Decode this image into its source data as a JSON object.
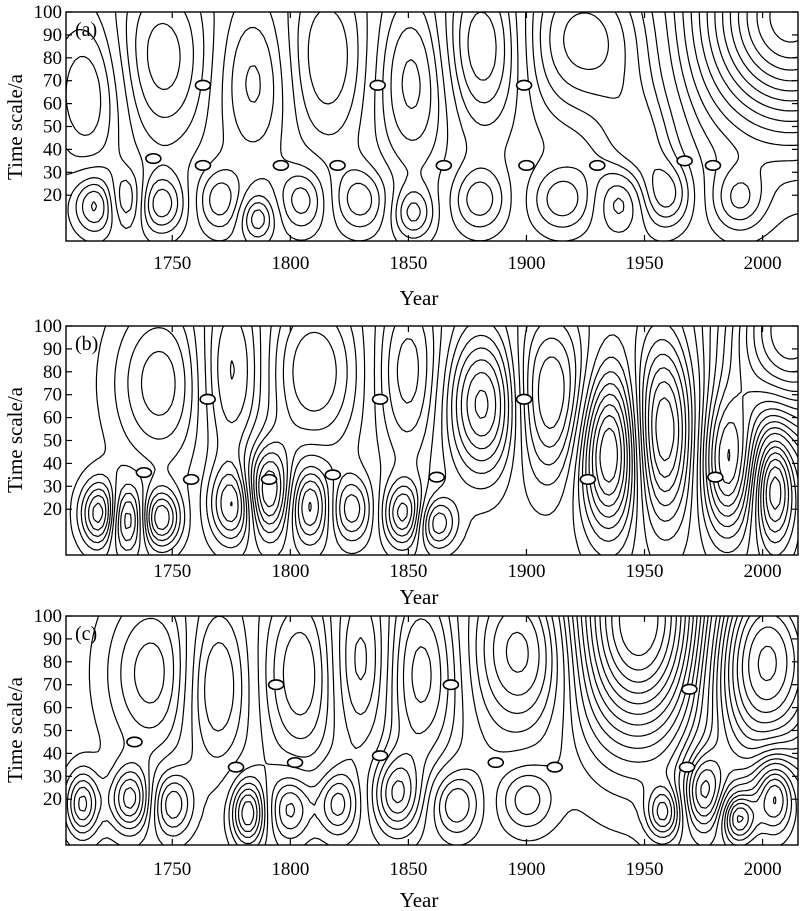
{
  "chart_data": [
    {
      "type": "contour",
      "panel_label": "(a)",
      "xlabel": "Year",
      "ylabel": "Time scale/a",
      "xlim": [
        1705,
        2015
      ],
      "ylim": [
        0,
        100
      ],
      "xticks": [
        1750,
        1800,
        1850,
        1900,
        1950,
        2000
      ],
      "yticks": [
        20,
        30,
        40,
        50,
        60,
        70,
        80,
        90,
        100
      ],
      "contour_style": "solid = positive, dashed = negative",
      "markers": [
        {
          "year": 1763,
          "scale": 68
        },
        {
          "year": 1742,
          "scale": 36
        },
        {
          "year": 1763,
          "scale": 33
        },
        {
          "year": 1796,
          "scale": 33
        },
        {
          "year": 1820,
          "scale": 33
        },
        {
          "year": 1837,
          "scale": 68
        },
        {
          "year": 1865,
          "scale": 33
        },
        {
          "year": 1899,
          "scale": 68
        },
        {
          "year": 1900,
          "scale": 33
        },
        {
          "year": 1930,
          "scale": 33
        },
        {
          "year": 1967,
          "scale": 35
        },
        {
          "year": 1979,
          "scale": 33
        }
      ],
      "centers": [
        {
          "year": 1718,
          "scale": 16,
          "sign": 1,
          "amp": 1.4,
          "sx": 7,
          "sy": 9
        },
        {
          "year": 1730,
          "scale": 18,
          "sign": -1,
          "amp": 1.1,
          "sx": 6,
          "sy": 9
        },
        {
          "year": 1745,
          "scale": 16,
          "sign": 1,
          "amp": 1.3,
          "sx": 7,
          "sy": 9
        },
        {
          "year": 1770,
          "scale": 18,
          "sign": -1,
          "amp": 1.0,
          "sx": 7,
          "sy": 10
        },
        {
          "year": 1786,
          "scale": 10,
          "sign": 1,
          "amp": 1.1,
          "sx": 5,
          "sy": 7
        },
        {
          "year": 1805,
          "scale": 18,
          "sign": -1,
          "amp": 1.0,
          "sx": 7,
          "sy": 10
        },
        {
          "year": 1830,
          "scale": 18,
          "sign": 1,
          "amp": 1.0,
          "sx": 8,
          "sy": 10
        },
        {
          "year": 1852,
          "scale": 12,
          "sign": -1,
          "amp": 1.1,
          "sx": 6,
          "sy": 8
        },
        {
          "year": 1880,
          "scale": 18,
          "sign": 1,
          "amp": 1.0,
          "sx": 8,
          "sy": 10
        },
        {
          "year": 1915,
          "scale": 18,
          "sign": -1,
          "amp": 1.0,
          "sx": 9,
          "sy": 10
        },
        {
          "year": 1940,
          "scale": 18,
          "sign": 1,
          "amp": 1.0,
          "sx": 7,
          "sy": 10
        },
        {
          "year": 1960,
          "scale": 20,
          "sign": -1,
          "amp": 1.0,
          "sx": 7,
          "sy": 10
        },
        {
          "year": 1990,
          "scale": 18,
          "sign": 1,
          "amp": 1.0,
          "sx": 8,
          "sy": 10
        },
        {
          "year": 1715,
          "scale": 65,
          "sign": -1,
          "amp": 1.2,
          "sx": 12,
          "sy": 25
        },
        {
          "year": 1745,
          "scale": 80,
          "sign": 1,
          "amp": 1.3,
          "sx": 16,
          "sy": 28
        },
        {
          "year": 1785,
          "scale": 70,
          "sign": -1,
          "amp": 1.0,
          "sx": 12,
          "sy": 25
        },
        {
          "year": 1815,
          "scale": 80,
          "sign": 1,
          "amp": 1.1,
          "sx": 14,
          "sy": 28
        },
        {
          "year": 1852,
          "scale": 70,
          "sign": -1,
          "amp": 1.3,
          "sx": 12,
          "sy": 28
        },
        {
          "year": 1882,
          "scale": 85,
          "sign": 1,
          "amp": 1.6,
          "sx": 13,
          "sy": 25
        },
        {
          "year": 1925,
          "scale": 88,
          "sign": -1,
          "amp": 1.6,
          "sx": 22,
          "sy": 25
        },
        {
          "year": 1948,
          "scale": 40,
          "sign": -1,
          "amp": 1.0,
          "sx": 12,
          "sy": 20
        },
        {
          "year": 2012,
          "scale": 98,
          "sign": 1,
          "amp": 4.0,
          "sx": 28,
          "sy": 35
        }
      ]
    },
    {
      "type": "contour",
      "panel_label": "(b)",
      "xlabel": "Year",
      "ylabel": "Time scale/a",
      "xlim": [
        1705,
        2015
      ],
      "ylim": [
        0,
        100
      ],
      "xticks": [
        1750,
        1800,
        1850,
        1900,
        1950,
        2000
      ],
      "yticks": [
        20,
        30,
        40,
        50,
        60,
        70,
        80,
        90,
        100
      ],
      "contour_style": "solid = positive, dashed = negative",
      "markers": [
        {
          "year": 1738,
          "scale": 36
        },
        {
          "year": 1758,
          "scale": 33
        },
        {
          "year": 1765,
          "scale": 68
        },
        {
          "year": 1791,
          "scale": 33
        },
        {
          "year": 1818,
          "scale": 35
        },
        {
          "year": 1838,
          "scale": 68
        },
        {
          "year": 1862,
          "scale": 34
        },
        {
          "year": 1899,
          "scale": 68
        },
        {
          "year": 1926,
          "scale": 33
        },
        {
          "year": 1980,
          "scale": 34
        }
      ],
      "centers": [
        {
          "year": 1720,
          "scale": 18,
          "sign": 1,
          "amp": 2.2,
          "sx": 6,
          "sy": 10
        },
        {
          "year": 1745,
          "scale": 16,
          "sign": 1,
          "amp": 2.0,
          "sx": 6,
          "sy": 9
        },
        {
          "year": 1730,
          "scale": 16,
          "sign": -1,
          "amp": 1.8,
          "sx": 6,
          "sy": 10
        },
        {
          "year": 1776,
          "scale": 22,
          "sign": -1,
          "amp": 1.8,
          "sx": 7,
          "sy": 12
        },
        {
          "year": 1790,
          "scale": 28,
          "sign": 1,
          "amp": 2.2,
          "sx": 7,
          "sy": 14
        },
        {
          "year": 1808,
          "scale": 22,
          "sign": -1,
          "amp": 1.6,
          "sx": 6,
          "sy": 12
        },
        {
          "year": 1826,
          "scale": 20,
          "sign": 1,
          "amp": 1.3,
          "sx": 6,
          "sy": 10
        },
        {
          "year": 1848,
          "scale": 18,
          "sign": -1,
          "amp": 1.8,
          "sx": 6,
          "sy": 10
        },
        {
          "year": 1862,
          "scale": 14,
          "sign": 1,
          "amp": 1.4,
          "sx": 6,
          "sy": 8
        },
        {
          "year": 1882,
          "scale": 66,
          "sign": 1,
          "amp": 2.2,
          "sx": 11,
          "sy": 22
        },
        {
          "year": 1910,
          "scale": 70,
          "sign": -1,
          "amp": 1.8,
          "sx": 12,
          "sy": 26
        },
        {
          "year": 1935,
          "scale": 45,
          "sign": 1,
          "amp": 2.8,
          "sx": 9,
          "sy": 25
        },
        {
          "year": 1958,
          "scale": 55,
          "sign": -1,
          "amp": 2.4,
          "sx": 9,
          "sy": 28
        },
        {
          "year": 1985,
          "scale": 40,
          "sign": 1,
          "amp": 2.4,
          "sx": 8,
          "sy": 22
        },
        {
          "year": 2005,
          "scale": 30,
          "sign": -1,
          "amp": 2.2,
          "sx": 6,
          "sy": 18
        },
        {
          "year": 2012,
          "scale": 98,
          "sign": 1,
          "amp": 3.5,
          "sx": 20,
          "sy": 30
        },
        {
          "year": 1745,
          "scale": 75,
          "sign": 1,
          "amp": 1.3,
          "sx": 14,
          "sy": 25
        },
        {
          "year": 1775,
          "scale": 80,
          "sign": -1,
          "amp": 1.3,
          "sx": 10,
          "sy": 28
        },
        {
          "year": 1810,
          "scale": 80,
          "sign": 1,
          "amp": 1.4,
          "sx": 14,
          "sy": 25
        },
        {
          "year": 1850,
          "scale": 80,
          "sign": -1,
          "amp": 1.3,
          "sx": 10,
          "sy": 28
        }
      ]
    },
    {
      "type": "contour",
      "panel_label": "(c)",
      "xlabel": "Year",
      "ylabel": "Time scale/a",
      "xlim": [
        1705,
        2015
      ],
      "ylim": [
        0,
        100
      ],
      "xticks": [
        1750,
        1800,
        1850,
        1900,
        1950,
        2000
      ],
      "yticks": [
        20,
        30,
        40,
        50,
        60,
        70,
        80,
        90,
        100
      ],
      "contour_style": "solid = positive, dashed = negative",
      "markers": [
        {
          "year": 1734,
          "scale": 45
        },
        {
          "year": 1777,
          "scale": 34
        },
        {
          "year": 1794,
          "scale": 70
        },
        {
          "year": 1802,
          "scale": 36
        },
        {
          "year": 1838,
          "scale": 39
        },
        {
          "year": 1868,
          "scale": 70
        },
        {
          "year": 1887,
          "scale": 36
        },
        {
          "year": 1912,
          "scale": 34
        },
        {
          "year": 1968,
          "scale": 34
        },
        {
          "year": 1969,
          "scale": 68
        }
      ],
      "centers": [
        {
          "year": 1712,
          "scale": 18,
          "sign": 1,
          "amp": 1.8,
          "sx": 5,
          "sy": 10
        },
        {
          "year": 1732,
          "scale": 20,
          "sign": 1,
          "amp": 1.8,
          "sx": 6,
          "sy": 10
        },
        {
          "year": 1750,
          "scale": 18,
          "sign": -1,
          "amp": 1.4,
          "sx": 6,
          "sy": 10
        },
        {
          "year": 1782,
          "scale": 14,
          "sign": 1,
          "amp": 2.0,
          "sx": 5,
          "sy": 10
        },
        {
          "year": 1800,
          "scale": 16,
          "sign": -1,
          "amp": 1.3,
          "sx": 6,
          "sy": 10
        },
        {
          "year": 1820,
          "scale": 18,
          "sign": -1,
          "amp": 1.3,
          "sx": 6,
          "sy": 10
        },
        {
          "year": 1845,
          "scale": 22,
          "sign": 1,
          "amp": 1.6,
          "sx": 7,
          "sy": 12
        },
        {
          "year": 1870,
          "scale": 18,
          "sign": -1,
          "amp": 1.2,
          "sx": 7,
          "sy": 10
        },
        {
          "year": 1900,
          "scale": 20,
          "sign": 1,
          "amp": 1.0,
          "sx": 8,
          "sy": 10
        },
        {
          "year": 1958,
          "scale": 14,
          "sign": 1,
          "amp": 1.6,
          "sx": 5,
          "sy": 8
        },
        {
          "year": 1975,
          "scale": 24,
          "sign": -1,
          "amp": 1.8,
          "sx": 6,
          "sy": 12
        },
        {
          "year": 1990,
          "scale": 12,
          "sign": 1,
          "amp": 2.0,
          "sx": 5,
          "sy": 8
        },
        {
          "year": 2005,
          "scale": 22,
          "sign": 1,
          "amp": 2.0,
          "sx": 6,
          "sy": 12
        },
        {
          "year": 1742,
          "scale": 75,
          "sign": 1,
          "amp": 1.3,
          "sx": 14,
          "sy": 25
        },
        {
          "year": 1768,
          "scale": 70,
          "sign": -1,
          "amp": 1.3,
          "sx": 10,
          "sy": 25
        },
        {
          "year": 1805,
          "scale": 75,
          "sign": 1,
          "amp": 1.4,
          "sx": 12,
          "sy": 28
        },
        {
          "year": 1830,
          "scale": 80,
          "sign": -1,
          "amp": 1.2,
          "sx": 10,
          "sy": 25
        },
        {
          "year": 1855,
          "scale": 75,
          "sign": 1,
          "amp": 1.6,
          "sx": 12,
          "sy": 30
        },
        {
          "year": 1900,
          "scale": 85,
          "sign": -1,
          "amp": 1.8,
          "sx": 16,
          "sy": 25
        },
        {
          "year": 1948,
          "scale": 98,
          "sign": 1,
          "amp": 4.2,
          "sx": 22,
          "sy": 38
        },
        {
          "year": 2000,
          "scale": 80,
          "sign": -1,
          "amp": 3.5,
          "sx": 18,
          "sy": 32
        }
      ]
    }
  ]
}
